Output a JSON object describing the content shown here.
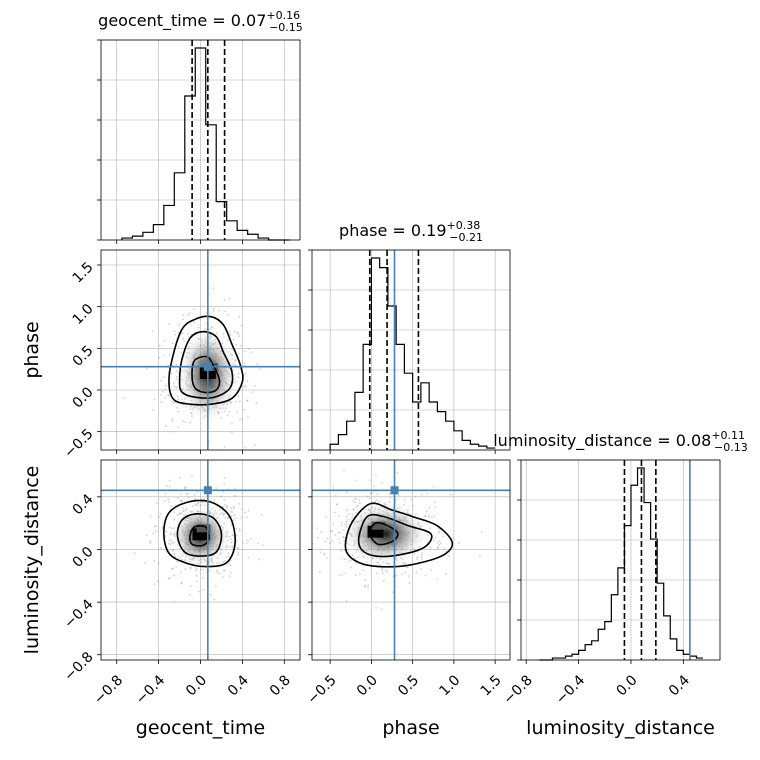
{
  "chart_data": {
    "type": "corner",
    "parameters": [
      "geocent_time",
      "phase",
      "luminosity_distance"
    ],
    "truths": {
      "geocent_time": 0.07,
      "phase": 0.28,
      "luminosity_distance": 0.45
    },
    "axis_ranges": {
      "geocent_time": [
        -0.95,
        0.95
      ],
      "phase": [
        -0.72,
        1.68
      ],
      "luminosity_distance": [
        -0.84,
        0.68
      ]
    },
    "ticks": {
      "geocent_time": [
        -0.8,
        -0.4,
        0.0,
        0.4,
        0.8
      ],
      "phase": [
        -0.5,
        0.0,
        0.5,
        1.0,
        1.5
      ],
      "luminosity_distance": [
        -0.8,
        -0.4,
        0.0,
        0.4
      ]
    },
    "tick_labels": {
      "geocent_time": [
        "−0.8",
        "−0.4",
        "0.0",
        "0.4",
        "0.8"
      ],
      "phase": [
        "−0.5",
        "0.0",
        "0.5",
        "1.0",
        "1.5"
      ],
      "luminosity_distance": [
        "−0.8",
        "−0.4",
        "0.0",
        "0.4"
      ]
    },
    "marginals": [
      {
        "parameter": "geocent_time",
        "title": {
          "prefix": "geocent_time = ",
          "median": "0.07",
          "plus": "+0.16",
          "minus": "−0.15"
        },
        "quantiles": [
          -0.08,
          0.07,
          0.23
        ],
        "bin_edges": [
          -0.75,
          -0.65,
          -0.55,
          -0.45,
          -0.35,
          -0.25,
          -0.15,
          -0.05,
          0.05,
          0.15,
          0.25,
          0.35,
          0.45,
          0.55,
          0.65,
          0.75,
          0.85
        ],
        "counts": [
          1,
          2,
          4,
          8,
          18,
          35,
          75,
          100,
          60,
          20,
          10,
          5,
          3,
          1,
          0,
          0
        ],
        "ylim": [
          0,
          100
        ]
      },
      {
        "parameter": "phase",
        "title": {
          "prefix": "phase = ",
          "median": "0.19",
          "plus": "+0.38",
          "minus": "−0.21"
        },
        "quantiles": [
          -0.02,
          0.19,
          0.57
        ],
        "bin_edges": [
          -0.5,
          -0.4,
          -0.3,
          -0.2,
          -0.1,
          0.0,
          0.1,
          0.2,
          0.3,
          0.4,
          0.5,
          0.6,
          0.7,
          0.8,
          0.9,
          1.0,
          1.1,
          1.2,
          1.3,
          1.4,
          1.5
        ],
        "counts": [
          3,
          8,
          15,
          30,
          55,
          100,
          95,
          75,
          55,
          40,
          25,
          35,
          25,
          20,
          15,
          10,
          5,
          3,
          2,
          1
        ],
        "ylim": [
          0,
          100
        ]
      },
      {
        "parameter": "luminosity_distance",
        "title": {
          "prefix": "luminosity_distance = ",
          "median": "0.08",
          "plus": "+0.11",
          "minus": "−0.13"
        },
        "quantiles": [
          -0.05,
          0.08,
          0.19
        ],
        "bin_edges": [
          -0.7,
          -0.6,
          -0.5,
          -0.45,
          -0.4,
          -0.35,
          -0.3,
          -0.25,
          -0.2,
          -0.15,
          -0.1,
          -0.05,
          0.0,
          0.05,
          0.1,
          0.15,
          0.2,
          0.25,
          0.3,
          0.35,
          0.4,
          0.45,
          0.5,
          0.55
        ],
        "counts": [
          0,
          1,
          2,
          3,
          5,
          8,
          10,
          16,
          20,
          34,
          48,
          70,
          91,
          100,
          82,
          63,
          40,
          23,
          11,
          5,
          3,
          2,
          1
        ],
        "ylim": [
          0,
          100
        ]
      }
    ],
    "joint": [
      {
        "x": "geocent_time",
        "y": "phase",
        "center": [
          0.07,
          0.18
        ],
        "contours": [
          {
            "level": 1,
            "points": [
              [
                -0.3,
                0.05
              ],
              [
                -0.28,
                0.32
              ],
              [
                -0.18,
                0.72
              ],
              [
                -0.05,
                0.85
              ],
              [
                0.1,
                0.88
              ],
              [
                0.22,
                0.78
              ],
              [
                0.3,
                0.55
              ],
              [
                0.38,
                0.3
              ],
              [
                0.4,
                0.1
              ],
              [
                0.3,
                -0.1
              ],
              [
                0.1,
                -0.17
              ],
              [
                -0.1,
                -0.17
              ],
              [
                -0.25,
                -0.12
              ]
            ]
          },
          {
            "level": 2,
            "points": [
              [
                -0.2,
                0.1
              ],
              [
                -0.18,
                0.35
              ],
              [
                -0.1,
                0.62
              ],
              [
                0.02,
                0.7
              ],
              [
                0.15,
                0.64
              ],
              [
                0.22,
                0.45
              ],
              [
                0.3,
                0.22
              ],
              [
                0.28,
                0.02
              ],
              [
                0.12,
                -0.09
              ],
              [
                -0.08,
                -0.08
              ],
              [
                -0.18,
                -0.02
              ]
            ]
          },
          {
            "level": 3,
            "points": [
              [
                -0.08,
                0.15
              ],
              [
                -0.06,
                0.35
              ],
              [
                0.06,
                0.4
              ],
              [
                0.12,
                0.3
              ],
              [
                0.18,
                0.12
              ],
              [
                0.15,
                0.0
              ],
              [
                0.05,
                -0.03
              ],
              [
                -0.05,
                0.02
              ]
            ]
          }
        ]
      },
      {
        "x": "geocent_time",
        "y": "luminosity_distance",
        "center": [
          0.0,
          0.1
        ],
        "contours": [
          {
            "level": 1,
            "points": [
              [
                -0.35,
                0.12
              ],
              [
                -0.3,
                0.28
              ],
              [
                -0.12,
                0.36
              ],
              [
                0.1,
                0.36
              ],
              [
                0.28,
                0.25
              ],
              [
                0.33,
                0.05
              ],
              [
                0.25,
                -0.1
              ],
              [
                0.05,
                -0.13
              ],
              [
                -0.15,
                -0.1
              ],
              [
                -0.3,
                -0.03
              ]
            ]
          },
          {
            "level": 2,
            "points": [
              [
                -0.22,
                0.1
              ],
              [
                -0.18,
                0.22
              ],
              [
                -0.05,
                0.27
              ],
              [
                0.12,
                0.24
              ],
              [
                0.2,
                0.12
              ],
              [
                0.15,
                -0.02
              ],
              [
                0.0,
                -0.05
              ],
              [
                -0.15,
                -0.02
              ]
            ]
          },
          {
            "level": 3,
            "points": [
              [
                -0.1,
                0.1
              ],
              [
                -0.06,
                0.17
              ],
              [
                0.05,
                0.17
              ],
              [
                0.08,
                0.08
              ],
              [
                0.02,
                0.03
              ],
              [
                -0.08,
                0.04
              ]
            ]
          }
        ]
      },
      {
        "x": "phase",
        "y": "luminosity_distance",
        "center": [
          0.05,
          0.12
        ],
        "contours": [
          {
            "level": 1,
            "points": [
              [
                -0.3,
                0.1
              ],
              [
                -0.2,
                0.24
              ],
              [
                0.0,
                0.35
              ],
              [
                0.25,
                0.3
              ],
              [
                0.5,
                0.25
              ],
              [
                0.8,
                0.18
              ],
              [
                0.98,
                0.05
              ],
              [
                0.85,
                -0.05
              ],
              [
                0.45,
                -0.12
              ],
              [
                0.1,
                -0.13
              ],
              [
                -0.15,
                -0.1
              ],
              [
                -0.3,
                -0.02
              ]
            ]
          },
          {
            "level": 2,
            "points": [
              [
                -0.15,
                0.1
              ],
              [
                -0.05,
                0.25
              ],
              [
                0.15,
                0.25
              ],
              [
                0.45,
                0.18
              ],
              [
                0.72,
                0.12
              ],
              [
                0.65,
                0.02
              ],
              [
                0.35,
                -0.04
              ],
              [
                0.05,
                -0.05
              ],
              [
                -0.12,
                0.0
              ]
            ]
          },
          {
            "level": 3,
            "points": [
              [
                -0.02,
                0.12
              ],
              [
                0.05,
                0.2
              ],
              [
                0.2,
                0.18
              ],
              [
                0.32,
                0.12
              ],
              [
                0.25,
                0.06
              ],
              [
                0.08,
                0.04
              ]
            ]
          }
        ]
      }
    ],
    "colors": {
      "truth": "#4682b4",
      "contour": "#000000",
      "grid": "#b0b0b0",
      "scatter": "#9a9a9a",
      "histogram": "#000000"
    }
  }
}
